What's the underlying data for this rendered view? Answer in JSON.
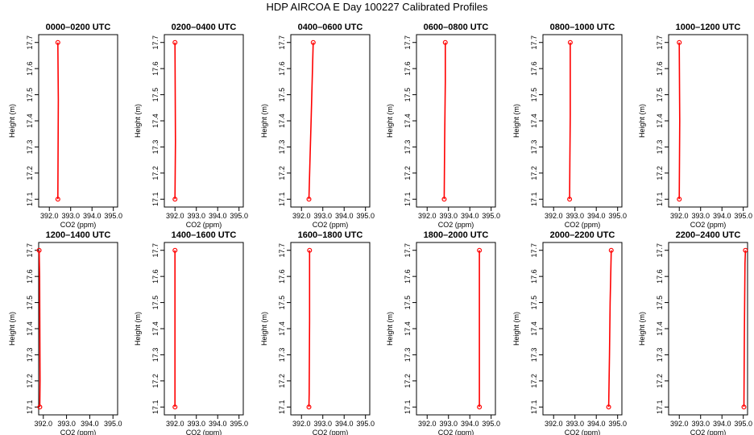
{
  "title": "HDP AIRCOA E  Day 100227  Calibrated Profiles",
  "colors": {
    "profile": "#ff0000",
    "axis": "#000000",
    "background": "#ffffff"
  },
  "chart_data": [
    {
      "type": "line",
      "title": "0000–0200 UTC",
      "xlabel": "CO2 (ppm)",
      "ylabel": "Height (m)",
      "xlim": [
        391.5,
        395.2
      ],
      "ylim": [
        17.07,
        17.73
      ],
      "xticks": [
        "392.0",
        "393.0",
        "394.0",
        "395.0"
      ],
      "yticks": [
        "17.1",
        "17.2",
        "17.3",
        "17.4",
        "17.5",
        "17.6",
        "17.7"
      ],
      "series": [
        {
          "x": [
            392.4,
            392.42,
            392.4
          ],
          "y": [
            17.1,
            17.48,
            17.7
          ]
        }
      ]
    },
    {
      "type": "line",
      "title": "0200–0400 UTC",
      "xlabel": "CO2 (ppm)",
      "ylabel": "Height (m)",
      "xlim": [
        391.5,
        395.2
      ],
      "ylim": [
        17.07,
        17.73
      ],
      "xticks": [
        "392.0",
        "393.0",
        "394.0",
        "395.0"
      ],
      "yticks": [
        "17.1",
        "17.2",
        "17.3",
        "17.4",
        "17.5",
        "17.6",
        "17.7"
      ],
      "series": [
        {
          "x": [
            392.0,
            392.02,
            392.0
          ],
          "y": [
            17.1,
            17.32,
            17.7
          ]
        }
      ]
    },
    {
      "type": "line",
      "title": "0400–0600 UTC",
      "xlabel": "CO2 (ppm)",
      "ylabel": "Height (m)",
      "xlim": [
        391.5,
        395.2
      ],
      "ylim": [
        17.07,
        17.73
      ],
      "xticks": [
        "392.0",
        "393.0",
        "394.0",
        "395.0"
      ],
      "yticks": [
        "17.1",
        "17.2",
        "17.3",
        "17.4",
        "17.5",
        "17.6",
        "17.7"
      ],
      "series": [
        {
          "x": [
            392.35,
            392.4,
            392.45,
            392.5,
            392.55
          ],
          "y": [
            17.1,
            17.25,
            17.4,
            17.55,
            17.7
          ]
        }
      ]
    },
    {
      "type": "line",
      "title": "0600–0800 UTC",
      "xlabel": "CO2 (ppm)",
      "ylabel": "Height (m)",
      "xlim": [
        391.5,
        395.2
      ],
      "ylim": [
        17.07,
        17.73
      ],
      "xticks": [
        "392.0",
        "393.0",
        "394.0",
        "395.0"
      ],
      "yticks": [
        "17.1",
        "17.2",
        "17.3",
        "17.4",
        "17.5",
        "17.6",
        "17.7"
      ],
      "series": [
        {
          "x": [
            392.8,
            392.82,
            392.85,
            392.85
          ],
          "y": [
            17.1,
            17.33,
            17.55,
            17.7
          ]
        }
      ]
    },
    {
      "type": "line",
      "title": "0800–1000 UTC",
      "xlabel": "CO2 (ppm)",
      "ylabel": "Height (m)",
      "xlim": [
        391.5,
        395.2
      ],
      "ylim": [
        17.07,
        17.73
      ],
      "xticks": [
        "392.0",
        "393.0",
        "394.0",
        "395.0"
      ],
      "yticks": [
        "17.1",
        "17.2",
        "17.3",
        "17.4",
        "17.5",
        "17.6",
        "17.7"
      ],
      "series": [
        {
          "x": [
            392.75,
            392.76,
            392.78,
            392.78
          ],
          "y": [
            17.1,
            17.24,
            17.42,
            17.7
          ]
        }
      ]
    },
    {
      "type": "line",
      "title": "1000–1200 UTC",
      "xlabel": "CO2 (ppm)",
      "ylabel": "Height (m)",
      "xlim": [
        391.5,
        395.2
      ],
      "ylim": [
        17.07,
        17.73
      ],
      "xticks": [
        "392.0",
        "393.0",
        "394.0",
        "395.0"
      ],
      "yticks": [
        "17.1",
        "17.2",
        "17.3",
        "17.4",
        "17.5",
        "17.6",
        "17.7"
      ],
      "series": [
        {
          "x": [
            392.0,
            392.02,
            392.0
          ],
          "y": [
            17.1,
            17.4,
            17.7
          ]
        }
      ]
    },
    {
      "type": "line",
      "title": "1200–1400 UTC",
      "xlabel": "CO2 (ppm)",
      "ylabel": "Height (m)",
      "xlim": [
        391.8,
        395.2
      ],
      "ylim": [
        17.07,
        17.73
      ],
      "xticks": [
        "392.0",
        "393.0",
        "394.0",
        "395.0"
      ],
      "yticks": [
        "17.1",
        "17.2",
        "17.3",
        "17.4",
        "17.5",
        "17.6",
        "17.7"
      ],
      "series": [
        {
          "x": [
            391.85,
            391.86,
            391.84,
            391.82
          ],
          "y": [
            17.1,
            17.2,
            17.6,
            17.7
          ]
        }
      ]
    },
    {
      "type": "line",
      "title": "1400–1600 UTC",
      "xlabel": "CO2 (ppm)",
      "ylabel": "Height (m)",
      "xlim": [
        391.5,
        395.2
      ],
      "ylim": [
        17.07,
        17.73
      ],
      "xticks": [
        "392.0",
        "393.0",
        "394.0",
        "395.0"
      ],
      "yticks": [
        "17.1",
        "17.2",
        "17.3",
        "17.4",
        "17.5",
        "17.6",
        "17.7"
      ],
      "series": [
        {
          "x": [
            392.0,
            392.0,
            392.0
          ],
          "y": [
            17.1,
            17.4,
            17.7
          ]
        }
      ]
    },
    {
      "type": "line",
      "title": "1600–1800 UTC",
      "xlabel": "CO2 (ppm)",
      "ylabel": "Height (m)",
      "xlim": [
        391.5,
        395.2
      ],
      "ylim": [
        17.07,
        17.73
      ],
      "xticks": [
        "392.0",
        "393.0",
        "394.0",
        "395.0"
      ],
      "yticks": [
        "17.1",
        "17.2",
        "17.3",
        "17.4",
        "17.5",
        "17.6",
        "17.7"
      ],
      "series": [
        {
          "x": [
            392.35,
            392.36,
            392.38,
            392.38
          ],
          "y": [
            17.1,
            17.15,
            17.43,
            17.7
          ]
        }
      ]
    },
    {
      "type": "line",
      "title": "1800–2000 UTC",
      "xlabel": "CO2 (ppm)",
      "ylabel": "Height (m)",
      "xlim": [
        391.5,
        395.2
      ],
      "ylim": [
        17.07,
        17.73
      ],
      "xticks": [
        "392.0",
        "393.0",
        "394.0",
        "395.0"
      ],
      "yticks": [
        "17.1",
        "17.2",
        "17.3",
        "17.4",
        "17.5",
        "17.6",
        "17.7"
      ],
      "series": [
        {
          "x": [
            394.45,
            394.45,
            394.45
          ],
          "y": [
            17.1,
            17.4,
            17.7
          ]
        }
      ]
    },
    {
      "type": "line",
      "title": "2000–2200 UTC",
      "xlabel": "CO2 (ppm)",
      "ylabel": "Height (m)",
      "xlim": [
        391.5,
        395.2
      ],
      "ylim": [
        17.07,
        17.73
      ],
      "xticks": [
        "392.0",
        "393.0",
        "394.0",
        "395.0"
      ],
      "yticks": [
        "17.1",
        "17.2",
        "17.3",
        "17.4",
        "17.5",
        "17.6",
        "17.7"
      ],
      "series": [
        {
          "x": [
            394.58,
            394.62,
            394.65,
            394.7
          ],
          "y": [
            17.1,
            17.3,
            17.5,
            17.7
          ]
        }
      ]
    },
    {
      "type": "line",
      "title": "2200–2400 UTC",
      "xlabel": "CO2 (ppm)",
      "ylabel": "Height (m)",
      "xlim": [
        391.5,
        395.2
      ],
      "ylim": [
        17.07,
        17.73
      ],
      "xticks": [
        "392.0",
        "393.0",
        "394.0",
        "395.0"
      ],
      "yticks": [
        "17.1",
        "17.2",
        "17.3",
        "17.4",
        "17.5",
        "17.6",
        "17.7"
      ],
      "series": [
        {
          "x": [
            395.03,
            395.05,
            395.08,
            395.1
          ],
          "y": [
            17.1,
            17.36,
            17.65,
            17.7
          ]
        }
      ]
    }
  ]
}
